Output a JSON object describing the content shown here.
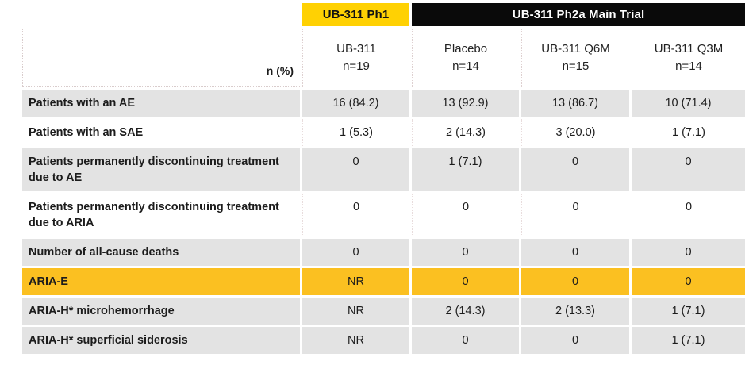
{
  "table": {
    "corner_label": "n (%)",
    "group_headers": [
      {
        "label": "UB-311 Ph1"
      },
      {
        "label": "UB-311 Ph2a Main Trial"
      }
    ],
    "columns": [
      {
        "line1": "UB-311",
        "line2": "n=19"
      },
      {
        "line1": "Placebo",
        "line2": "n=14"
      },
      {
        "line1": "UB-311 Q6M",
        "line2": "n=15"
      },
      {
        "line1": "UB-311 Q3M",
        "line2": "n=14"
      }
    ],
    "rows": [
      {
        "label": "Patients with an AE",
        "values": [
          "16 (84.2)",
          "13 (92.9)",
          "13 (86.7)",
          "10 (71.4)"
        ],
        "highlight": "gray"
      },
      {
        "label": "Patients with an SAE",
        "values": [
          "1 (5.3)",
          "2 (14.3)",
          "3 (20.0)",
          "1 (7.1)"
        ],
        "highlight": "white"
      },
      {
        "label": "Patients permanently discontinuing treatment due to AE",
        "values": [
          "0",
          "1 (7.1)",
          "0",
          "0"
        ],
        "highlight": "gray"
      },
      {
        "label": "Patients permanently discontinuing treatment due to ARIA",
        "values": [
          "0",
          "0",
          "0",
          "0"
        ],
        "highlight": "white"
      },
      {
        "label": "Number of all-cause deaths",
        "values": [
          "0",
          "0",
          "0",
          "0"
        ],
        "highlight": "gray"
      },
      {
        "label": "ARIA-E",
        "values": [
          "NR",
          "0",
          "0",
          "0"
        ],
        "highlight": "yellow"
      },
      {
        "label": "ARIA-H* microhemorrhage",
        "values": [
          "NR",
          "2 (14.3)",
          "2 (13.3)",
          "1 (7.1)"
        ],
        "highlight": "gray"
      },
      {
        "label": "ARIA-H* superficial siderosis",
        "values": [
          "NR",
          "0",
          "0",
          "1 (7.1)"
        ],
        "highlight": "gray"
      }
    ],
    "colors": {
      "group_header_yellow": "#ffd103",
      "group_header_black": "#0a0a0a",
      "row_gray": "#e3e3e3",
      "row_highlight_yellow": "#fbc021",
      "text": "#1c1c1c"
    }
  }
}
